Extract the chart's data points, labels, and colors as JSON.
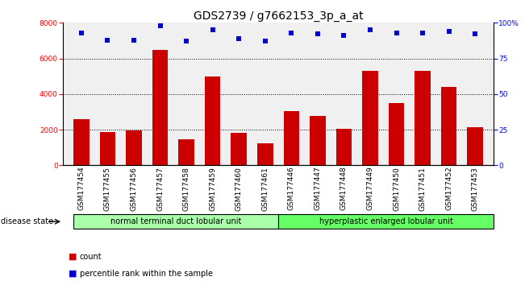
{
  "title": "GDS2739 / g7662153_3p_a_at",
  "samples": [
    "GSM177454",
    "GSM177455",
    "GSM177456",
    "GSM177457",
    "GSM177458",
    "GSM177459",
    "GSM177460",
    "GSM177461",
    "GSM177446",
    "GSM177447",
    "GSM177448",
    "GSM177449",
    "GSM177450",
    "GSM177451",
    "GSM177452",
    "GSM177453"
  ],
  "counts": [
    2600,
    1850,
    1950,
    6500,
    1450,
    5000,
    1800,
    1250,
    3050,
    2750,
    2050,
    5300,
    3500,
    5300,
    4400,
    2150
  ],
  "percentiles": [
    93,
    88,
    88,
    98,
    87,
    95,
    89,
    87,
    93,
    92,
    91,
    95,
    93,
    93,
    94,
    92
  ],
  "bar_color": "#cc0000",
  "dot_color": "#0000cc",
  "group1_label": "normal terminal duct lobular unit",
  "group2_label": "hyperplastic enlarged lobular unit",
  "group1_color": "#aaffaa",
  "group2_color": "#66ff66",
  "group1_count": 8,
  "group2_count": 8,
  "ylim_left": [
    0,
    8000
  ],
  "ylim_right": [
    0,
    100
  ],
  "yticks_left": [
    0,
    2000,
    4000,
    6000,
    8000
  ],
  "yticks_right": [
    0,
    25,
    50,
    75,
    100
  ],
  "background_color": "#ffffff",
  "plot_bg_color": "#f0f0f0",
  "title_fontsize": 10,
  "tick_fontsize": 6.5,
  "disease_state_fontsize": 7,
  "legend_fontsize": 7
}
